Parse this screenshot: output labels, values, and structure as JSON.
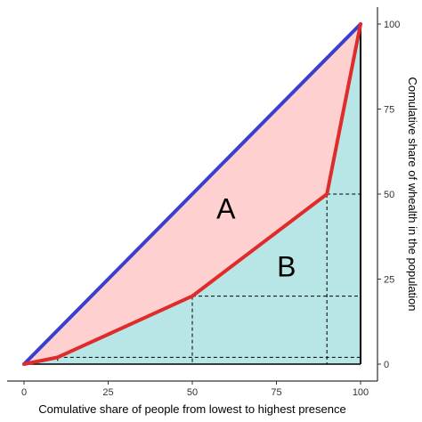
{
  "chart_data": {
    "type": "line",
    "xlabel": "Comulative share of people from lowest to highest presence",
    "ylabel": "Comulative share of whealth in the population",
    "xlim": [
      0,
      100
    ],
    "ylim": [
      0,
      100
    ],
    "x_ticks": [
      0,
      25,
      50,
      75,
      100
    ],
    "y_ticks": [
      0,
      25,
      50,
      75,
      100
    ],
    "x_tick_labels": [
      "0",
      "25",
      "50",
      "75",
      "100"
    ],
    "y_tick_labels": [
      "0",
      "25",
      "50",
      "75",
      "100"
    ],
    "y_axis_position": "right",
    "grid": false,
    "series": [
      {
        "x": [
          0,
          100
        ],
        "y": [
          0,
          100
        ],
        "color": "#3a3fcf"
      },
      {
        "x": [
          0,
          10,
          50,
          90,
          100
        ],
        "y": [
          0,
          2,
          20,
          50,
          100
        ],
        "color": "#e02b2b"
      }
    ],
    "fills": [
      {
        "label": "A",
        "color": "#ffd0d0"
      },
      {
        "label": "B",
        "color": "#b8e6e6"
      }
    ],
    "region_labels": [
      {
        "text": "A",
        "x": 60,
        "y": 45
      },
      {
        "text": "B",
        "x": 78,
        "y": 28
      }
    ],
    "reference_lines": [
      {
        "x": 50,
        "y": 20
      },
      {
        "x": 90,
        "y": 50
      },
      {
        "x": 10,
        "y": 2
      }
    ]
  }
}
